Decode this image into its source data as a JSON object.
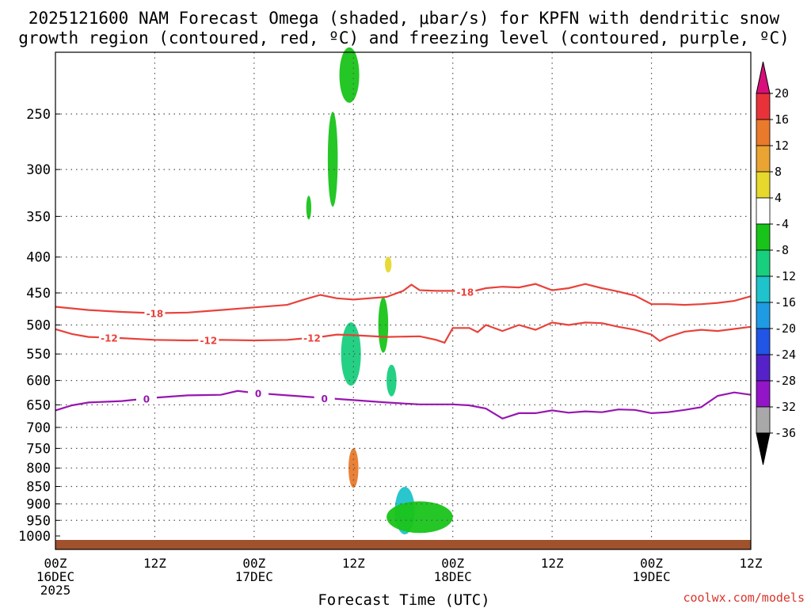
{
  "chart_data": {
    "type": "time-height-contour",
    "title_line1": "2025121600 NAM Forecast Omega (shaded, μbar/s) for KPFN with dendritic snow",
    "title_line2": "growth region (contoured, red, ºC) and freezing level (contoured, purple, ºC)",
    "xlabel": "Forecast Time (UTC)",
    "x_hours_range": [
      0,
      84
    ],
    "y_pressure_range_hpa": [
      1000,
      200
    ],
    "pressure_levels": [
      250,
      300,
      350,
      400,
      450,
      500,
      550,
      600,
      650,
      700,
      750,
      800,
      850,
      900,
      950,
      1000
    ],
    "x_ticks": [
      {
        "hour": 0,
        "lines": [
          "00Z",
          "16DEC",
          "2025"
        ]
      },
      {
        "hour": 12,
        "lines": [
          "12Z"
        ]
      },
      {
        "hour": 24,
        "lines": [
          "00Z",
          "17DEC"
        ]
      },
      {
        "hour": 36,
        "lines": [
          "12Z"
        ]
      },
      {
        "hour": 48,
        "lines": [
          "00Z",
          "18DEC"
        ]
      },
      {
        "hour": 60,
        "lines": [
          "12Z"
        ]
      },
      {
        "hour": 72,
        "lines": [
          "00Z",
          "19DEC"
        ]
      },
      {
        "hour": 84,
        "lines": [
          "12Z"
        ]
      }
    ],
    "colorbar": {
      "levels": [
        20,
        16,
        12,
        8,
        4,
        -4,
        -8,
        -12,
        -16,
        -20,
        -24,
        -28,
        -32,
        -36
      ],
      "colors": [
        "#d80f7b",
        "#e8323a",
        "#e97a2b",
        "#e9a431",
        "#e6d82c",
        "#ffffff",
        "#18c419",
        "#18cf7d",
        "#1ec3cb",
        "#1e9be3",
        "#2055e6",
        "#5422c8",
        "#9315c8",
        "#a8a8a8",
        "#000000"
      ]
    },
    "temperature_contours": [
      {
        "label": "-18",
        "color": "#e8423a",
        "points": [
          [
            0,
            471
          ],
          [
            4,
            476
          ],
          [
            8,
            479
          ],
          [
            12,
            481
          ],
          [
            16,
            480
          ],
          [
            20,
            476
          ],
          [
            24,
            472
          ],
          [
            28,
            468
          ],
          [
            30,
            460
          ],
          [
            32,
            453
          ],
          [
            34,
            458
          ],
          [
            36,
            460
          ],
          [
            40,
            456
          ],
          [
            42,
            447
          ],
          [
            43,
            438
          ],
          [
            44,
            446
          ],
          [
            46,
            447
          ],
          [
            48,
            447
          ],
          [
            50,
            449
          ],
          [
            52,
            443
          ],
          [
            54,
            441
          ],
          [
            56,
            442
          ],
          [
            58,
            437
          ],
          [
            60,
            446
          ],
          [
            62,
            443
          ],
          [
            64,
            437
          ],
          [
            66,
            443
          ],
          [
            68,
            448
          ],
          [
            70,
            454
          ],
          [
            72,
            467
          ],
          [
            74,
            467
          ],
          [
            76,
            468
          ],
          [
            78,
            467
          ],
          [
            80,
            465
          ],
          [
            82,
            462
          ],
          [
            84,
            455
          ]
        ],
        "labels_at": [
          12,
          49.5
        ]
      },
      {
        "label": "-12",
        "color": "#e8423a",
        "points": [
          [
            0,
            507
          ],
          [
            2,
            515
          ],
          [
            4,
            520
          ],
          [
            8,
            522
          ],
          [
            12,
            525
          ],
          [
            16,
            526
          ],
          [
            20,
            525
          ],
          [
            24,
            526
          ],
          [
            28,
            525
          ],
          [
            32,
            520
          ],
          [
            34,
            516
          ],
          [
            36,
            517
          ],
          [
            40,
            520
          ],
          [
            44,
            519
          ],
          [
            46,
            525
          ],
          [
            47,
            530
          ],
          [
            48,
            505
          ],
          [
            50,
            505
          ],
          [
            51,
            512
          ],
          [
            52,
            500
          ],
          [
            54,
            510
          ],
          [
            56,
            500
          ],
          [
            58,
            508
          ],
          [
            60,
            496
          ],
          [
            62,
            500
          ],
          [
            64,
            496
          ],
          [
            66,
            497
          ],
          [
            68,
            503
          ],
          [
            70,
            508
          ],
          [
            72,
            516
          ],
          [
            73,
            527
          ],
          [
            74,
            520
          ],
          [
            76,
            511
          ],
          [
            78,
            508
          ],
          [
            80,
            510
          ],
          [
            84,
            503
          ]
        ],
        "labels_at": [
          6.5,
          18.5,
          31
        ]
      },
      {
        "label": "0",
        "color": "#9716b0",
        "points": [
          [
            0,
            662
          ],
          [
            2,
            651
          ],
          [
            4,
            645
          ],
          [
            8,
            642
          ],
          [
            12,
            635
          ],
          [
            16,
            630
          ],
          [
            20,
            629
          ],
          [
            22,
            621
          ],
          [
            24,
            625
          ],
          [
            28,
            630
          ],
          [
            32,
            635
          ],
          [
            36,
            640
          ],
          [
            40,
            645
          ],
          [
            44,
            649
          ],
          [
            46,
            649
          ],
          [
            48,
            649
          ],
          [
            50,
            651
          ],
          [
            52,
            658
          ],
          [
            54,
            680
          ],
          [
            56,
            668
          ],
          [
            58,
            668
          ],
          [
            60,
            662
          ],
          [
            62,
            667
          ],
          [
            64,
            664
          ],
          [
            66,
            666
          ],
          [
            68,
            660
          ],
          [
            70,
            661
          ],
          [
            72,
            668
          ],
          [
            74,
            666
          ],
          [
            76,
            661
          ],
          [
            78,
            655
          ],
          [
            80,
            631
          ],
          [
            82,
            624
          ],
          [
            84,
            629
          ]
        ],
        "labels_at": [
          11,
          24.5,
          32.5
        ]
      }
    ],
    "omega_shaded_cells": [
      {
        "hour": 30.6,
        "p": 340,
        "w": 0.3,
        "h": 30,
        "value": -6
      },
      {
        "hour": 33.5,
        "p": 290,
        "w": 0.6,
        "h": 120,
        "value": -6
      },
      {
        "hour": 35.5,
        "p": 220,
        "w": 1.2,
        "h": 70,
        "value": -6
      },
      {
        "hour": 35.7,
        "p": 550,
        "w": 1.2,
        "h": 80,
        "value": -10
      },
      {
        "hour": 36,
        "p": 800,
        "w": 0.6,
        "h": 50,
        "value": 14
      },
      {
        "hour": 39.6,
        "p": 500,
        "w": 0.6,
        "h": 70,
        "value": -6
      },
      {
        "hour": 40.6,
        "p": 600,
        "w": 0.6,
        "h": 40,
        "value": -8
      },
      {
        "hour": 42.2,
        "p": 920,
        "w": 1.2,
        "h": 60,
        "value": -14
      },
      {
        "hour": 44,
        "p": 940,
        "w": 4,
        "h": 40,
        "value": -6
      },
      {
        "hour": 40.2,
        "p": 410,
        "w": 0.4,
        "h": 20,
        "value": 6
      }
    ]
  },
  "credit": "coolwx.com/models"
}
